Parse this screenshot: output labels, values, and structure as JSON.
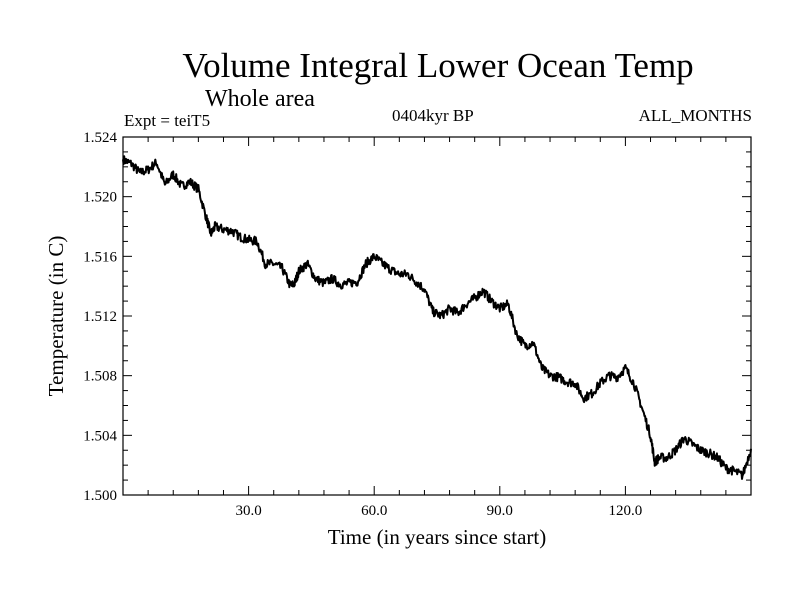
{
  "chart_data": {
    "type": "line",
    "title": "Volume Integral Lower Ocean Temp",
    "subtitle": "Whole area",
    "expt_label": "Expt = teiT5",
    "period_label": "0404kyr BP",
    "months_label": "ALL_MONTHS",
    "xlabel": "Time (in years since start)",
    "ylabel": "Temperature (in C)",
    "xlim": [
      0,
      150
    ],
    "ylim": [
      1.5,
      1.524
    ],
    "x_ticks": [
      30,
      60,
      90,
      120
    ],
    "x_tick_labels": [
      "30.0",
      "60.0",
      "90.0",
      "120.0"
    ],
    "y_ticks": [
      1.5,
      1.504,
      1.508,
      1.512,
      1.516,
      1.52,
      1.524
    ],
    "y_tick_labels": [
      "1.500",
      "1.504",
      "1.508",
      "1.512",
      "1.516",
      "1.520",
      "1.524"
    ],
    "series": [
      {
        "name": "Volume Integral Lower Ocean Temp",
        "color": "#000000",
        "x": [
          0,
          2,
          4,
          6,
          8,
          10,
          12,
          14,
          16,
          18,
          20,
          21,
          22,
          24,
          26,
          28,
          30,
          32,
          34,
          36,
          38,
          40,
          41,
          42,
          44,
          46,
          48,
          50,
          52,
          54,
          56,
          58,
          60,
          62,
          64,
          66,
          68,
          70,
          72,
          74,
          76,
          78,
          80,
          82,
          84,
          86,
          88,
          90,
          92,
          94,
          96,
          98,
          100,
          102,
          104,
          106,
          108,
          110,
          112,
          114,
          116,
          118,
          120,
          122,
          124,
          126,
          127,
          128,
          130,
          132,
          134,
          136,
          138,
          140,
          142,
          144,
          146,
          148,
          150
        ],
        "y": [
          1.5225,
          1.5222,
          1.5216,
          1.5218,
          1.5223,
          1.5208,
          1.5215,
          1.5207,
          1.521,
          1.5205,
          1.5185,
          1.5175,
          1.518,
          1.5178,
          1.5177,
          1.5173,
          1.5171,
          1.517,
          1.5155,
          1.5155,
          1.5152,
          1.514,
          1.5142,
          1.515,
          1.5155,
          1.5145,
          1.5142,
          1.5145,
          1.5141,
          1.5142,
          1.5143,
          1.5155,
          1.516,
          1.5155,
          1.5151,
          1.5148,
          1.5148,
          1.5143,
          1.5138,
          1.5123,
          1.512,
          1.5125,
          1.5122,
          1.5128,
          1.5132,
          1.5137,
          1.513,
          1.5125,
          1.5128,
          1.5108,
          1.51,
          1.5102,
          1.5085,
          1.508,
          1.5079,
          1.5076,
          1.5075,
          1.5065,
          1.5068,
          1.5075,
          1.508,
          1.5079,
          1.5085,
          1.5075,
          1.5058,
          1.504,
          1.5022,
          1.5025,
          1.5025,
          1.503,
          1.5038,
          1.5034,
          1.503,
          1.5028,
          1.5025,
          1.5018,
          1.5016,
          1.5013,
          1.5031
        ]
      }
    ]
  }
}
